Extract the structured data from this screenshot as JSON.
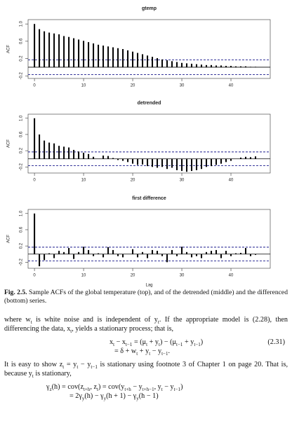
{
  "chart_data": [
    {
      "type": "stem",
      "title": "gtemp",
      "ylabel": "ACF",
      "x": [
        0,
        1,
        2,
        3,
        4,
        5,
        6,
        7,
        8,
        9,
        10,
        11,
        12,
        13,
        14,
        15,
        16,
        17,
        18,
        19,
        20,
        21,
        22,
        23,
        24,
        25,
        26,
        27,
        28,
        29,
        30,
        31,
        32,
        33,
        34,
        35,
        36,
        37,
        38,
        39,
        40,
        41,
        42,
        43,
        44,
        45
      ],
      "values": [
        1.0,
        0.88,
        0.83,
        0.8,
        0.78,
        0.76,
        0.72,
        0.7,
        0.67,
        0.64,
        0.61,
        0.58,
        0.55,
        0.52,
        0.5,
        0.48,
        0.46,
        0.44,
        0.42,
        0.39,
        0.36,
        0.33,
        0.3,
        0.27,
        0.24,
        0.21,
        0.18,
        0.16,
        0.14,
        0.12,
        0.1,
        0.09,
        0.08,
        0.07,
        0.06,
        0.05,
        0.05,
        0.04,
        0.04,
        0.03,
        0.03,
        0.02,
        0.02,
        0.02,
        0.01,
        0.01
      ],
      "color": "#000000",
      "conf_limits": [
        -0.17,
        0.17
      ],
      "conf_color": "#1a1a8c",
      "xlim": [
        -1.3,
        48
      ],
      "ylim": [
        -0.26,
        1.1
      ],
      "xticks": [
        0,
        10,
        20,
        30,
        40
      ],
      "yticks": [
        -0.2,
        0.2,
        0.6,
        {
          "value": 1,
          "label": "1.0"
        }
      ]
    },
    {
      "type": "stem",
      "title": "detrended",
      "ylabel": "ACF",
      "x": [
        0,
        1,
        2,
        3,
        4,
        5,
        6,
        7,
        8,
        9,
        10,
        11,
        12,
        13,
        14,
        15,
        16,
        17,
        18,
        19,
        20,
        21,
        22,
        23,
        24,
        25,
        26,
        27,
        28,
        29,
        30,
        31,
        32,
        33,
        34,
        35,
        36,
        37,
        38,
        39,
        40,
        41,
        42,
        43,
        44,
        45
      ],
      "values": [
        1.0,
        0.6,
        0.45,
        0.4,
        0.38,
        0.32,
        0.3,
        0.28,
        0.22,
        0.18,
        0.15,
        0.12,
        0.05,
        0.0,
        0.08,
        0.07,
        0.02,
        -0.03,
        -0.05,
        -0.08,
        -0.12,
        -0.15,
        -0.14,
        -0.18,
        -0.2,
        -0.22,
        -0.2,
        -0.25,
        -0.22,
        -0.28,
        -0.3,
        -0.32,
        -0.3,
        -0.28,
        -0.25,
        -0.2,
        -0.18,
        -0.15,
        -0.12,
        -0.08,
        -0.05,
        0.0,
        0.03,
        0.05,
        0.04,
        0.06
      ],
      "color": "#000000",
      "conf_limits": [
        -0.17,
        0.17
      ],
      "conf_color": "#1a1a8c",
      "xlim": [
        -1.3,
        48
      ],
      "ylim": [
        -0.35,
        1.1
      ],
      "xticks": [
        0,
        10,
        20,
        30,
        40
      ],
      "yticks": [
        -0.2,
        0.2,
        0.6,
        {
          "value": 1,
          "label": "1.0"
        }
      ]
    },
    {
      "type": "stem",
      "title": "first difference",
      "ylabel": "ACF",
      "xlabel": "Lag",
      "x": [
        0,
        1,
        2,
        3,
        4,
        5,
        6,
        7,
        8,
        9,
        10,
        11,
        12,
        13,
        14,
        15,
        16,
        17,
        18,
        19,
        20,
        21,
        22,
        23,
        24,
        25,
        26,
        27,
        28,
        29,
        30,
        31,
        32,
        33,
        34,
        35,
        36,
        37,
        38,
        39,
        40,
        41,
        42,
        43,
        44,
        45
      ],
      "values": [
        1.0,
        -0.3,
        -0.15,
        0.02,
        -0.1,
        0.08,
        0.05,
        0.15,
        -0.12,
        0.05,
        0.18,
        0.1,
        -0.05,
        0.02,
        -0.08,
        0.17,
        0.1,
        -0.05,
        -0.08,
        0.0,
        0.12,
        -0.08,
        0.05,
        -0.1,
        0.1,
        0.08,
        -0.05,
        -0.2,
        0.1,
        -0.05,
        0.18,
        0.05,
        -0.08,
        -0.05,
        -0.1,
        0.05,
        0.08,
        0.1,
        -0.1,
        0.08,
        -0.05,
        0.02,
        0.03,
        0.15,
        -0.05,
        -0.02
      ],
      "color": "#000000",
      "conf_limits": [
        -0.17,
        0.17
      ],
      "conf_color": "#1a1a8c",
      "xlim": [
        -1.3,
        48
      ],
      "ylim": [
        -0.35,
        1.1
      ],
      "xticks": [
        0,
        10,
        20,
        30,
        40
      ],
      "yticks": [
        -0.2,
        0.2,
        0.6,
        {
          "value": 1,
          "label": "1.0"
        }
      ]
    }
  ],
  "caption": {
    "label": "Fig. 2.5.",
    "text": "Sample ACFs of the global temperature (top), and of the detrended (middle) and the differenced (bottom) series."
  },
  "paragraph_1": [
    "where w",
    "t",
    " is white noise and is independent of y",
    "t",
    ". If the appropriate model is (2.28), then differencing the data, x",
    "t",
    ", yields a stationary process; that is,"
  ],
  "equation_1": {
    "lines": [
      [
        "x",
        "t",
        " − x",
        "t−1",
        " = (μ",
        "t",
        " + y",
        "t",
        ") − (μ",
        "t−1",
        " + y",
        "t−1",
        ")"
      ],
      [
        "= δ + w",
        "t",
        " + y",
        "t",
        " − y",
        "t−1",
        "."
      ]
    ],
    "number": "(2.31)"
  },
  "paragraph_2": [
    "It is easy to show z",
    "t",
    " = y",
    "t",
    " − y",
    "t−1",
    " is stationary using footnote 3 of Chapter 1 on page 20. That is, because y",
    "t",
    " is stationary,"
  ],
  "equation_2": {
    "lines": [
      [
        "γ",
        "z",
        "(h) = cov(z",
        "t+h",
        ", z",
        "t",
        ") = cov(y",
        "t+h",
        " − y",
        "t+h−1",
        ", y",
        "t",
        " − y",
        "t−1",
        ")"
      ],
      [
        "= 2γ",
        "y",
        "(h) − γ",
        "y",
        "(h + 1) − γ",
        "y",
        "(h − 1)"
      ]
    ]
  }
}
